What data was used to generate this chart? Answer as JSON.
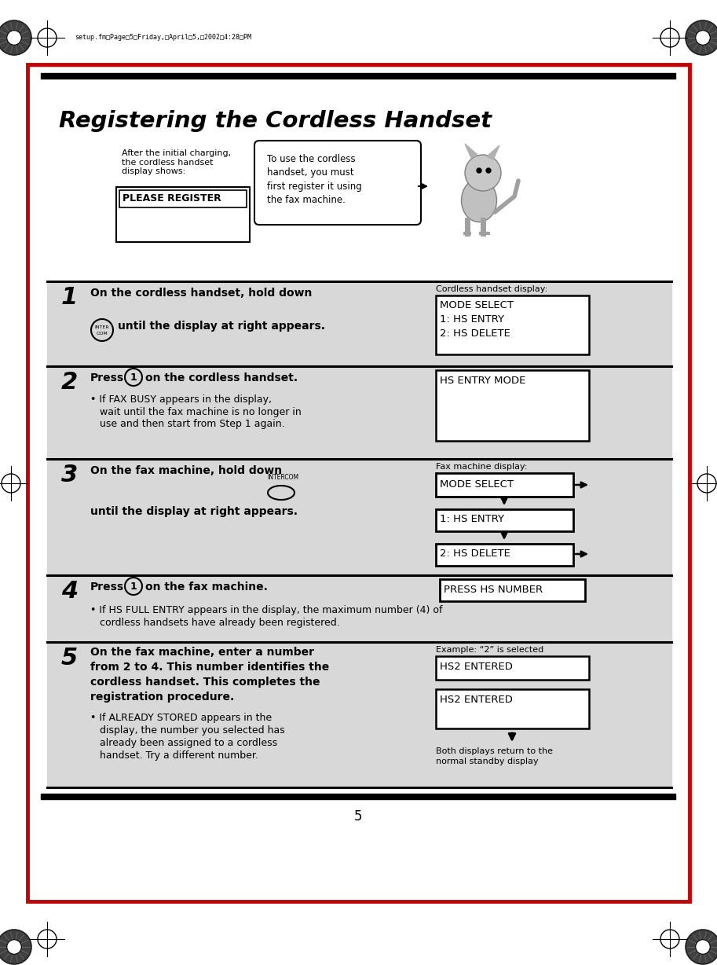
{
  "title": "Registering the Cordless Handset",
  "page_num": "5",
  "header_text": "setup.fm  Page 5  Friday, April 5, 2002  4:28 PM",
  "bg_color": "#ffffff",
  "border_color": "#cc0000",
  "inner_bg": "#ffffff",
  "step_bg": "#d8d8d8",
  "intro_text_left": "After the initial charging,\nthe cordless handset\ndisplay shows:",
  "intro_display": "PLEASE REGISTER",
  "intro_bubble": "To use the cordless\nhandset, you must\nfirst register it using\nthe fax machine.",
  "step1_bold1": "On the cordless handset, hold down",
  "step1_bold2": "until the display at right appears.",
  "step1_label": "Cordless handset display:",
  "step1_display": [
    "MODE SELECT",
    "1: HS ENTRY",
    "2: HS DELETE"
  ],
  "step2_bold": "Press",
  "step2_bold2": "on the cordless handset.",
  "step2_display": "HS ENTRY MODE",
  "step2_bullet": "If FAX BUSY appears in the display,\nwait until the fax machine is no longer in\nuse and then start from Step 1 again.",
  "step3_bold1": "On the fax machine, hold down",
  "step3_bold2": "until the display at right appears.",
  "step3_label": "Fax machine display:",
  "step3_display": [
    "MODE SELECT",
    "1: HS ENTRY",
    "2: HS DELETE"
  ],
  "step4_bold": "Press",
  "step4_bold2": "on the fax machine.",
  "step4_display": "PRESS HS NUMBER",
  "step4_bullet": "If HS FULL ENTRY appears in the display, the maximum number (4) of\ncordless handsets have already been registered.",
  "step5_bold": "On the fax machine, enter a number\nfrom 2 to 4. This number identifies the\ncordless handset. This completes the\nregistration procedure.",
  "step5_label": "Example: “2” is selected",
  "step5_display1": "HS2 ENTERED",
  "step5_display2": "HS2 ENTERED",
  "step5_bullet": "If ALREADY STORED appears in the\ndisplay, the number you selected has\nalready been assigned to a cordless\nhandset. Try a different number.",
  "step5_note": "Both displays return to the\nnormal standby display"
}
